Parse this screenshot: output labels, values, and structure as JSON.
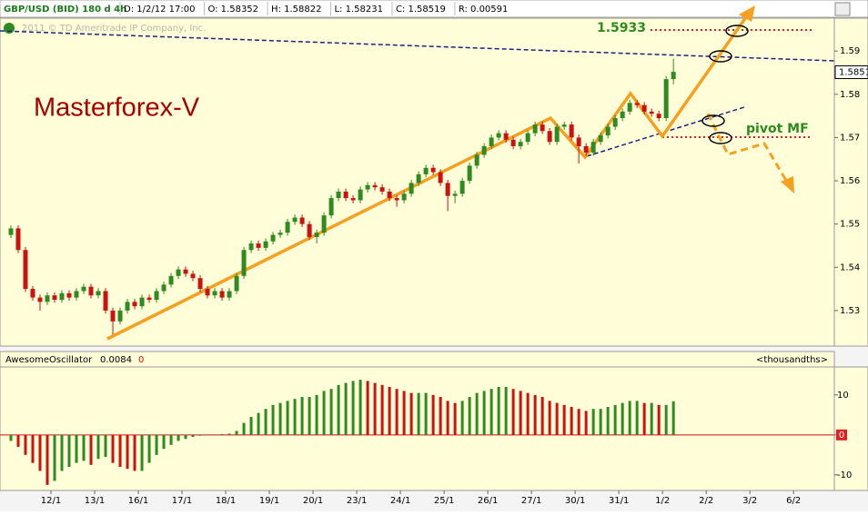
{
  "chart_data": [
    {
      "type": "candlestick",
      "title": "GBP/USD (BID) 180 d 4h",
      "info": [
        "D: 1/2/12 17:00",
        "O: 1.58352",
        "H: 1.58822",
        "L: 1.58231",
        "C: 1.58519",
        "R: 0.00591"
      ],
      "copyright": "2011 © TD Ameritrade IP Company, Inc.",
      "annotations": [
        "Masterforex-V",
        "1.5933",
        "pivot MF"
      ],
      "last_price": 1.5851,
      "up_color": "#2e8b22",
      "down_color": "#cc1111",
      "ylim": [
        1.522,
        1.5976
      ],
      "yticks": [
        1.53,
        1.54,
        1.55,
        1.56,
        1.57,
        1.58,
        1.59
      ],
      "xlim": [
        0,
        113.6
      ],
      "xticks": [
        {
          "value": 6,
          "label": "12/1"
        },
        {
          "value": 12,
          "label": "13/1"
        },
        {
          "value": 18,
          "label": "16/1"
        },
        {
          "value": 24,
          "label": "17/1"
        },
        {
          "value": 30,
          "label": "18/1"
        },
        {
          "value": 36,
          "label": "19/1"
        },
        {
          "value": 42,
          "label": "20/1"
        },
        {
          "value": 48,
          "label": "23/1"
        },
        {
          "value": 54,
          "label": "24/1"
        },
        {
          "value": 60,
          "label": "25/1"
        },
        {
          "value": 66,
          "label": "26/1"
        },
        {
          "value": 72,
          "label": "27/1"
        },
        {
          "value": 78,
          "label": "30/1"
        },
        {
          "value": 84,
          "label": "31/1"
        },
        {
          "value": 90,
          "label": "1/2"
        },
        {
          "value": 96,
          "label": "2/2"
        },
        {
          "value": 102,
          "label": "3/2"
        },
        {
          "value": 108,
          "label": "6/2"
        }
      ],
      "ohlc": [
        [
          1.5475,
          1.5497,
          1.5468,
          1.549
        ],
        [
          1.549,
          1.5497,
          1.5433,
          1.544
        ],
        [
          1.544,
          1.5447,
          1.5343,
          1.535
        ],
        [
          1.535,
          1.5357,
          1.5323,
          1.533
        ],
        [
          1.533,
          1.5337,
          1.53,
          1.532
        ],
        [
          1.532,
          1.5342,
          1.5313,
          1.5335
        ],
        [
          1.5335,
          1.5342,
          1.5318,
          1.5325
        ],
        [
          1.5325,
          1.5347,
          1.5318,
          1.534
        ],
        [
          1.534,
          1.5347,
          1.5323,
          1.533
        ],
        [
          1.533,
          1.5352,
          1.5323,
          1.5345
        ],
        [
          1.5345,
          1.5362,
          1.5338,
          1.5355
        ],
        [
          1.5355,
          1.5362,
          1.5328,
          1.5335
        ],
        [
          1.5335,
          1.5352,
          1.5328,
          1.5345
        ],
        [
          1.5345,
          1.5352,
          1.5293,
          1.53
        ],
        [
          1.53,
          1.5307,
          1.5245,
          1.5275
        ],
        [
          1.5275,
          1.5307,
          1.5268,
          1.53
        ],
        [
          1.53,
          1.5327,
          1.5293,
          1.532
        ],
        [
          1.532,
          1.5327,
          1.5303,
          1.531
        ],
        [
          1.531,
          1.5337,
          1.5303,
          1.533
        ],
        [
          1.533,
          1.5337,
          1.5318,
          1.5325
        ],
        [
          1.5325,
          1.5352,
          1.5318,
          1.5345
        ],
        [
          1.5345,
          1.5367,
          1.5338,
          1.536
        ],
        [
          1.536,
          1.5387,
          1.5353,
          1.538
        ],
        [
          1.538,
          1.5402,
          1.5373,
          1.5395
        ],
        [
          1.5395,
          1.5402,
          1.5378,
          1.5385
        ],
        [
          1.5385,
          1.5392,
          1.5368,
          1.5375
        ],
        [
          1.5375,
          1.5382,
          1.5343,
          1.535
        ],
        [
          1.535,
          1.5357,
          1.5328,
          1.5335
        ],
        [
          1.5335,
          1.5352,
          1.5328,
          1.5345
        ],
        [
          1.5345,
          1.5352,
          1.5323,
          1.533
        ],
        [
          1.533,
          1.5352,
          1.5323,
          1.5345
        ],
        [
          1.5345,
          1.5387,
          1.5338,
          1.538
        ],
        [
          1.538,
          1.5447,
          1.5373,
          1.544
        ],
        [
          1.544,
          1.5462,
          1.5433,
          1.5455
        ],
        [
          1.5455,
          1.5462,
          1.5438,
          1.5445
        ],
        [
          1.5445,
          1.5467,
          1.5438,
          1.546
        ],
        [
          1.546,
          1.5482,
          1.5453,
          1.5475
        ],
        [
          1.5475,
          1.5487,
          1.5468,
          1.548
        ],
        [
          1.548,
          1.5512,
          1.5473,
          1.5505
        ],
        [
          1.5505,
          1.5522,
          1.5498,
          1.5515
        ],
        [
          1.5515,
          1.5522,
          1.5493,
          1.55
        ],
        [
          1.55,
          1.5507,
          1.5463,
          1.547
        ],
        [
          1.547,
          1.5487,
          1.5455,
          1.548
        ],
        [
          1.548,
          1.5527,
          1.5473,
          1.552
        ],
        [
          1.552,
          1.5567,
          1.5513,
          1.556
        ],
        [
          1.556,
          1.5582,
          1.5553,
          1.5575
        ],
        [
          1.5575,
          1.5582,
          1.5553,
          1.556
        ],
        [
          1.556,
          1.5567,
          1.5548,
          1.5555
        ],
        [
          1.5555,
          1.5587,
          1.5548,
          1.558
        ],
        [
          1.558,
          1.5597,
          1.5573,
          1.559
        ],
        [
          1.559,
          1.5597,
          1.5578,
          1.5585
        ],
        [
          1.5585,
          1.5592,
          1.5568,
          1.5575
        ],
        [
          1.5575,
          1.5582,
          1.5553,
          1.556
        ],
        [
          1.556,
          1.5567,
          1.554,
          1.5555
        ],
        [
          1.5555,
          1.5577,
          1.5548,
          1.557
        ],
        [
          1.557,
          1.5602,
          1.5563,
          1.5595
        ],
        [
          1.5595,
          1.5622,
          1.5588,
          1.5615
        ],
        [
          1.5615,
          1.5637,
          1.5608,
          1.563
        ],
        [
          1.563,
          1.5637,
          1.5613,
          1.562
        ],
        [
          1.562,
          1.5627,
          1.5588,
          1.5595
        ],
        [
          1.5595,
          1.5602,
          1.553,
          1.5565
        ],
        [
          1.5565,
          1.5577,
          1.5548,
          1.557
        ],
        [
          1.557,
          1.5607,
          1.5563,
          1.56
        ],
        [
          1.56,
          1.5642,
          1.5593,
          1.5635
        ],
        [
          1.5635,
          1.5667,
          1.5628,
          1.566
        ],
        [
          1.566,
          1.5687,
          1.5653,
          1.568
        ],
        [
          1.568,
          1.5707,
          1.5673,
          1.57
        ],
        [
          1.57,
          1.5717,
          1.5693,
          1.571
        ],
        [
          1.571,
          1.5717,
          1.5688,
          1.5695
        ],
        [
          1.5695,
          1.5702,
          1.5673,
          1.568
        ],
        [
          1.568,
          1.5697,
          1.5673,
          1.569
        ],
        [
          1.569,
          1.5717,
          1.5683,
          1.571
        ],
        [
          1.571,
          1.5737,
          1.5703,
          1.573
        ],
        [
          1.573,
          1.5737,
          1.5708,
          1.5715
        ],
        [
          1.5715,
          1.5722,
          1.5683,
          1.569
        ],
        [
          1.569,
          1.5732,
          1.5683,
          1.5725
        ],
        [
          1.5725,
          1.5737,
          1.5718,
          1.573
        ],
        [
          1.573,
          1.5737,
          1.5693,
          1.57
        ],
        [
          1.57,
          1.5707,
          1.564,
          1.568
        ],
        [
          1.568,
          1.5687,
          1.5658,
          1.5665
        ],
        [
          1.5665,
          1.5697,
          1.5658,
          1.569
        ],
        [
          1.569,
          1.5712,
          1.5683,
          1.5705
        ],
        [
          1.5705,
          1.5732,
          1.5698,
          1.5725
        ],
        [
          1.5725,
          1.5752,
          1.5718,
          1.5745
        ],
        [
          1.5745,
          1.5767,
          1.5738,
          1.576
        ],
        [
          1.576,
          1.5787,
          1.5753,
          1.578
        ],
        [
          1.578,
          1.5787,
          1.5768,
          1.5775
        ],
        [
          1.5775,
          1.5782,
          1.5753,
          1.576
        ],
        [
          1.576,
          1.5767,
          1.5748,
          1.5755
        ],
        [
          1.5755,
          1.5762,
          1.5738,
          1.5745
        ],
        [
          1.5745,
          1.5842,
          1.5738,
          1.5835
        ],
        [
          1.58352,
          1.58822,
          1.58231,
          1.58519
        ]
      ]
    },
    {
      "type": "bar",
      "title": "AwesomeOscillator",
      "current_label": "0.0084",
      "param": 0,
      "units": "<thousandths>",
      "up_color": "#2e8b22",
      "down_color": "#cc1111",
      "ylim": [
        -13.9,
        17
      ],
      "yticks": [
        -10,
        0,
        10
      ],
      "values": [
        -1.5,
        -3,
        -5,
        -7,
        -9,
        -12.5,
        -11.5,
        -9,
        -8,
        -7,
        -6.5,
        -7.5,
        -6,
        -5.5,
        -7,
        -8,
        -8.5,
        -9,
        -9,
        -7,
        -5,
        -3.5,
        -2.5,
        -1.5,
        -1,
        -0.5,
        -0.2,
        0.1,
        0.1,
        0.2,
        0.3,
        1,
        3,
        4.5,
        5.5,
        6.5,
        7.5,
        8,
        8.5,
        9,
        9.5,
        9.5,
        10,
        11,
        11.5,
        12.5,
        13,
        13.5,
        13.8,
        13.5,
        13,
        12.5,
        12,
        11.5,
        11,
        10.5,
        10.5,
        10.5,
        10,
        9.5,
        8.5,
        8,
        8.5,
        9.5,
        10.5,
        11,
        11.5,
        12,
        12,
        11.5,
        11,
        10.5,
        10,
        9.5,
        8.5,
        8,
        7.5,
        7,
        6.5,
        6,
        6.5,
        6.5,
        7,
        7.5,
        8,
        8.5,
        8.5,
        8,
        8,
        7.5,
        7.5,
        8.4
      ]
    }
  ]
}
